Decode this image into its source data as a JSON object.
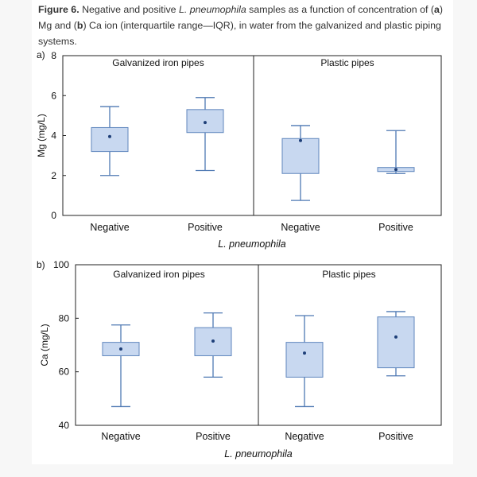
{
  "caption": {
    "label": "Figure 6.",
    "text_1": " Negative and positive ",
    "organism": "L. pneumophila",
    "text_2": " samples as a function of concentration of (",
    "a_letter": "a",
    "text_3": ") Mg and (",
    "b_letter": "b",
    "text_4": ") Ca ion (interquartile range—IQR), in water from the galvanized and plastic piping systems."
  },
  "colors": {
    "box_fill": "#c8d8f0",
    "box_stroke": "#5f86bd",
    "whisker": "#4f79b3",
    "mean_dot": "#1e3f78",
    "frame": "#222222"
  },
  "chart_data": [
    {
      "panel": "a)",
      "type": "box",
      "ylabel": "Mg (mg/L)",
      "xlabel": "L. pneumophila",
      "ylim": [
        0,
        8
      ],
      "yticks": [
        0,
        2,
        4,
        6,
        8
      ],
      "groups": [
        {
          "title": "Galvanized iron pipes",
          "boxes": [
            {
              "category": "Negative",
              "whisker_low": 2.0,
              "q1": 3.2,
              "q3": 4.4,
              "whisker_high": 5.45,
              "mean": 3.95
            },
            {
              "category": "Positive",
              "whisker_low": 2.25,
              "q1": 4.15,
              "q3": 5.3,
              "whisker_high": 5.9,
              "mean": 4.65
            }
          ]
        },
        {
          "title": "Plastic pipes",
          "boxes": [
            {
              "category": "Negative",
              "whisker_low": 0.75,
              "q1": 2.1,
              "q3": 3.85,
              "whisker_high": 4.5,
              "mean": 3.75
            },
            {
              "category": "Positive",
              "whisker_low": 2.1,
              "q1": 2.2,
              "q3": 2.4,
              "whisker_high": 4.25,
              "mean": 2.3
            }
          ]
        }
      ]
    },
    {
      "panel": "b)",
      "type": "box",
      "ylabel": "Ca (mg/L)",
      "xlabel": "L. pneumophila",
      "ylim": [
        40,
        100
      ],
      "yticks": [
        40,
        60,
        80,
        100
      ],
      "groups": [
        {
          "title": "Galvanized iron pipes",
          "boxes": [
            {
              "category": "Negative",
              "whisker_low": 47,
              "q1": 66,
              "q3": 71,
              "whisker_high": 77.5,
              "mean": 68.5
            },
            {
              "category": "Positive",
              "whisker_low": 58,
              "q1": 66,
              "q3": 76.5,
              "whisker_high": 82,
              "mean": 71.5
            }
          ]
        },
        {
          "title": "Plastic pipes",
          "boxes": [
            {
              "category": "Negative",
              "whisker_low": 47,
              "q1": 58,
              "q3": 71,
              "whisker_high": 81,
              "mean": 67
            },
            {
              "category": "Positive",
              "whisker_low": 58.5,
              "q1": 61.5,
              "q3": 80.5,
              "whisker_high": 82.5,
              "mean": 73
            }
          ]
        }
      ]
    }
  ]
}
